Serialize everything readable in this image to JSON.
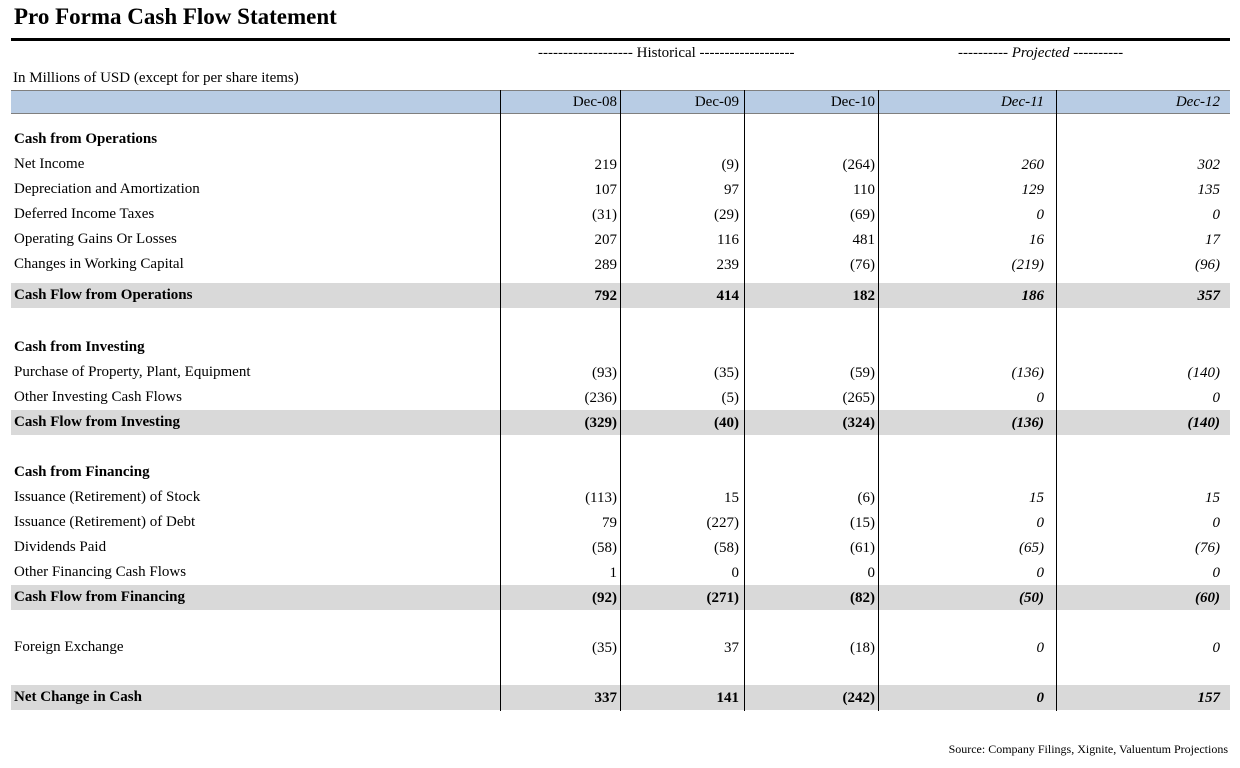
{
  "title": "Pro Forma Cash Flow Statement",
  "groups": {
    "historical": "------------------- Historical -------------------",
    "projected": "---------- Projected ----------"
  },
  "units": "In Millions of USD (except for per share items)",
  "columns": [
    "Dec-08",
    "Dec-09",
    "Dec-10",
    "Dec-11",
    "Dec-12"
  ],
  "projected_columns": [
    3,
    4
  ],
  "rows": [
    {
      "label": "Cash from Operations",
      "kind": "section"
    },
    {
      "label": "Net Income",
      "kind": "item",
      "values": [
        "219",
        "(9)",
        "(264)",
        "260",
        "302"
      ]
    },
    {
      "label": "Depreciation and Amortization",
      "kind": "item",
      "values": [
        "107",
        "97",
        "110",
        "129",
        "135"
      ]
    },
    {
      "label": "Deferred Income Taxes",
      "kind": "item",
      "values": [
        "(31)",
        "(29)",
        "(69)",
        "0",
        "0"
      ]
    },
    {
      "label": "Operating Gains Or Losses",
      "kind": "item",
      "values": [
        "207",
        "116",
        "481",
        "16",
        "17"
      ]
    },
    {
      "label": "Changes in Working Capital",
      "kind": "item",
      "values": [
        "289",
        "239",
        "(76)",
        "(219)",
        "(96)"
      ]
    },
    {
      "label": "Cash Flow from Operations",
      "kind": "total",
      "values": [
        "792",
        "414",
        "182",
        "186",
        "357"
      ]
    },
    {
      "label": "Cash from Investing",
      "kind": "section"
    },
    {
      "label": "Purchase of Property, Plant, Equipment",
      "kind": "item",
      "values": [
        "(93)",
        "(35)",
        "(59)",
        "(136)",
        "(140)"
      ]
    },
    {
      "label": "Other Investing Cash Flows",
      "kind": "item",
      "values": [
        "(236)",
        "(5)",
        "(265)",
        "0",
        "0"
      ]
    },
    {
      "label": "Cash Flow from Investing",
      "kind": "total",
      "values": [
        "(329)",
        "(40)",
        "(324)",
        "(136)",
        "(140)"
      ]
    },
    {
      "label": "Cash from Financing",
      "kind": "section"
    },
    {
      "label": "Issuance (Retirement) of Stock",
      "kind": "item",
      "values": [
        "(113)",
        "15",
        "(6)",
        "15",
        "15"
      ]
    },
    {
      "label": "Issuance (Retirement) of Debt",
      "kind": "item",
      "values": [
        "79",
        "(227)",
        "(15)",
        "0",
        "0"
      ]
    },
    {
      "label": "Dividends Paid",
      "kind": "item",
      "values": [
        "(58)",
        "(58)",
        "(61)",
        "(65)",
        "(76)"
      ]
    },
    {
      "label": "Other Financing Cash Flows",
      "kind": "item",
      "values": [
        "1",
        "0",
        "0",
        "0",
        "0"
      ]
    },
    {
      "label": "Cash Flow from Financing",
      "kind": "total",
      "values": [
        "(92)",
        "(271)",
        "(82)",
        "(50)",
        "(60)"
      ]
    },
    {
      "label": "Foreign Exchange",
      "kind": "item",
      "values": [
        "(35)",
        "37",
        "(18)",
        "0",
        "0"
      ]
    },
    {
      "label": "Net Change in Cash",
      "kind": "total",
      "values": [
        "337",
        "141",
        "(242)",
        "0",
        "157"
      ]
    }
  ],
  "source": "Source: Company Filings, Xignite, Valuentum Projections"
}
